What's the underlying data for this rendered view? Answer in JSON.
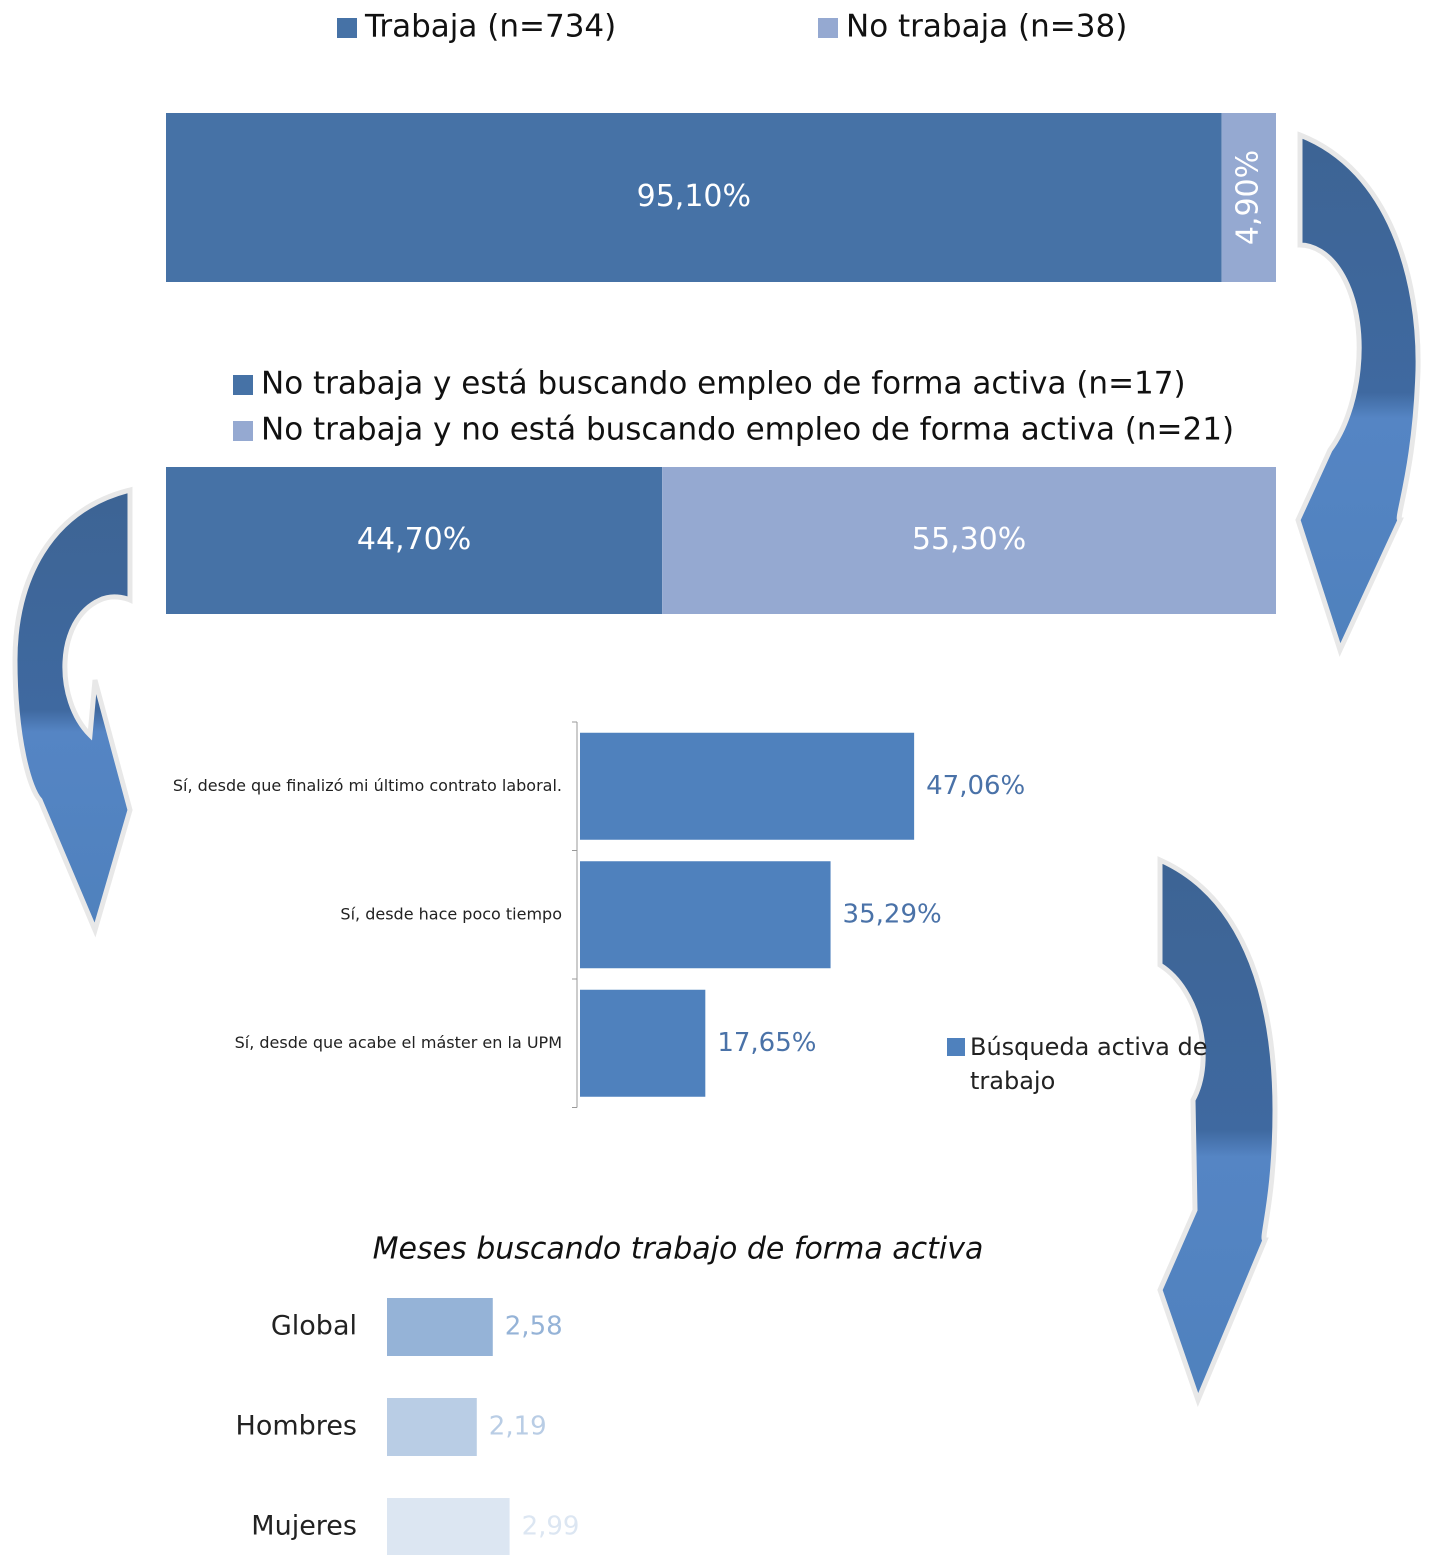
{
  "chart_data": [
    {
      "type": "stacked-bar",
      "series": [
        {
          "name": "Trabaja (n=734)",
          "color": "#4672a6",
          "values": [
            95.1
          ],
          "value_labels": [
            "95,10%"
          ]
        },
        {
          "name": "No trabaja (n=38)",
          "color": "#95a9d1",
          "values": [
            4.9
          ],
          "value_labels": [
            "4,90%"
          ]
        }
      ]
    },
    {
      "type": "stacked-bar",
      "series": [
        {
          "name": "No trabaja y está buscando empleo de forma activa (n=17)",
          "color": "#4672a6",
          "values": [
            44.7
          ],
          "value_labels": [
            "44,70%"
          ]
        },
        {
          "name": "No trabaja y no está buscando empleo de forma activa (n=21)",
          "color": "#95a9d1",
          "values": [
            55.3
          ],
          "value_labels": [
            "55,30%"
          ]
        }
      ]
    },
    {
      "type": "bar",
      "orientation": "horizontal",
      "categories": [
        "Sí, desde que finalizó mi último contrato laboral.",
        "Sí, desde hace poco tiempo",
        "Sí, desde que acabe el máster en la UPM"
      ],
      "series": [
        {
          "name": "Búsqueda activa de trabajo",
          "color": "#4f81bd",
          "values": [
            47.06,
            35.29,
            17.65
          ],
          "value_labels": [
            "47,06%",
            "35,29%",
            "17,65%"
          ]
        }
      ]
    },
    {
      "type": "bar",
      "orientation": "horizontal",
      "title": "Meses buscando trabajo de forma activa",
      "categories": [
        "Global",
        "Hombres",
        "Mujeres"
      ],
      "values": [
        2.58,
        2.19,
        2.99
      ],
      "value_labels": [
        "2,58",
        "2,19",
        "2,99"
      ],
      "colors": [
        "#95b3d7",
        "#b9cde5",
        "#dce6f2"
      ]
    }
  ]
}
